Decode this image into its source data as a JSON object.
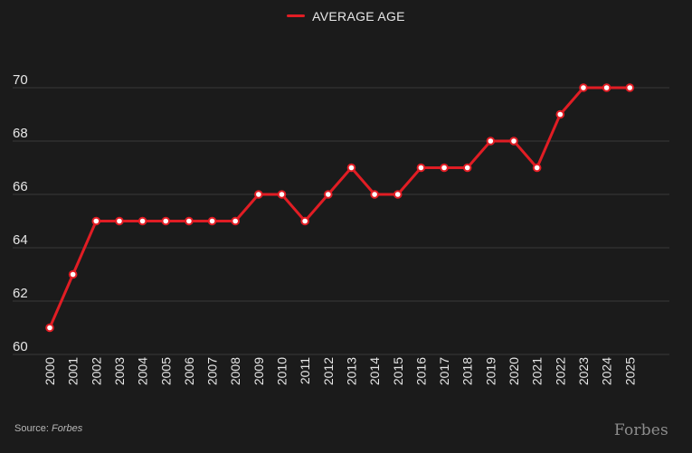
{
  "legend": {
    "label": "AVERAGE AGE"
  },
  "source": {
    "prefix": "Source:",
    "name": "Forbes"
  },
  "brand": {
    "logo_text": "Forbes"
  },
  "colors": {
    "background": "#1b1b1b",
    "line": "#e11d24",
    "marker_fill": "#ffffff",
    "gridline": "#3a3a3a",
    "text": "#e6e6e6"
  },
  "chart_data": {
    "type": "line",
    "title": "",
    "xlabel": "",
    "ylabel": "",
    "x": [
      "2000",
      "2001",
      "2002",
      "2003",
      "2004",
      "2005",
      "2006",
      "2007",
      "2008",
      "2009",
      "2010",
      "2011",
      "2012",
      "2013",
      "2014",
      "2015",
      "2016",
      "2017",
      "2018",
      "2019",
      "2020",
      "2021",
      "2022",
      "2023",
      "2024",
      "2025"
    ],
    "series": [
      {
        "name": "AVERAGE AGE",
        "values": [
          61,
          63,
          65,
          65,
          65,
          65,
          65,
          65,
          65,
          66,
          66,
          65,
          66,
          67,
          66,
          66,
          67,
          67,
          67,
          68,
          68,
          67,
          69,
          70,
          70,
          70
        ]
      }
    ],
    "ylim": [
      60,
      70
    ],
    "yticks": [
      60,
      62,
      64,
      66,
      68,
      70
    ],
    "grid": true,
    "legend_position": "top-center"
  }
}
